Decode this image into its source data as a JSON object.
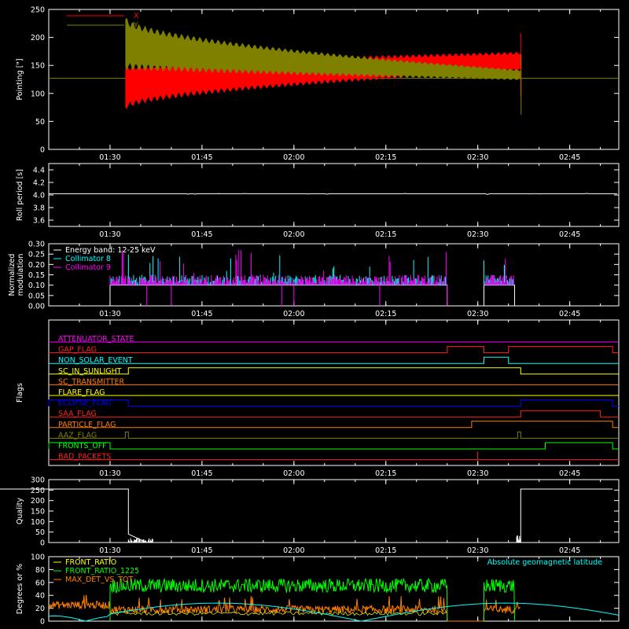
{
  "time_ticks": [
    "01:30",
    "01:45",
    "02:00",
    "02:15",
    "02:30",
    "02:45"
  ],
  "chart_data": [
    {
      "id": "pointing",
      "type": "line",
      "ylabel": "Pointing [\"]",
      "ylim": [
        0,
        250
      ],
      "yticks": [
        "0",
        "50",
        "100",
        "150",
        "200",
        "250"
      ],
      "legend": [
        {
          "name": "X",
          "color": "#ff0000"
        },
        {
          "name": "Y",
          "color": "#808000"
        }
      ],
      "reference_line": 127,
      "series": [
        {
          "name": "X",
          "color": "#ff0000",
          "envelope": {
            "start": "01:32:30",
            "end": "02:37:00",
            "center_start": 110,
            "center_end": 157,
            "amp_start": 35,
            "amp_end": 15
          }
        },
        {
          "name": "Y",
          "color": "#808000",
          "envelope": {
            "start": "01:32:30",
            "end": "02:37:00",
            "center_start": 190,
            "center_end": 133,
            "amp_start": 42,
            "amp_end": 8
          }
        }
      ]
    },
    {
      "id": "roll",
      "type": "line",
      "ylabel": "Roll period [s]",
      "ylim": [
        3.5,
        4.5
      ],
      "yticks": [
        "3.6",
        "3.8",
        "4.0",
        "4.2",
        "4.4"
      ],
      "series": [
        {
          "name": "",
          "color": "#ffffff",
          "value": 4.02
        }
      ]
    },
    {
      "id": "modulation",
      "type": "line",
      "ylabel": "Normalized modulation",
      "ylim": [
        0,
        0.3
      ],
      "yticks": [
        "0.00",
        "0.05",
        "0.10",
        "0.15",
        "0.20",
        "0.25",
        "0.30"
      ],
      "legend": [
        {
          "name": "Energy band: 12-25 keV",
          "color": "#ffffff"
        },
        {
          "name": "Collimator 8",
          "color": "#00ffff"
        },
        {
          "name": "Collimator 9",
          "color": "#ff00ff"
        }
      ],
      "intervals": [
        [
          "01:30",
          "02:25"
        ],
        [
          "02:31",
          "02:36"
        ]
      ],
      "baseline": 0.1
    },
    {
      "id": "flags",
      "type": "line",
      "ylabel": "Flags",
      "flags": [
        {
          "name": "ATTENUATOR_STATE",
          "color": "#ff00ff",
          "steps": []
        },
        {
          "name": "GAP_FLAG",
          "color": "#ff2020",
          "steps": [
            [
              "02:25",
              "02:31"
            ],
            [
              "02:35",
              "02:52"
            ]
          ]
        },
        {
          "name": "NON_SOLAR_EVENT",
          "color": "#00ffff",
          "steps": [
            [
              "02:31",
              "02:35"
            ]
          ]
        },
        {
          "name": "SC_IN_SUNLIGHT",
          "color": "#ffff00",
          "steps": [
            [
              "01:33",
              "02:37"
            ]
          ]
        },
        {
          "name": "SC_TRANSMITTER",
          "color": "#ff8000",
          "steps": []
        },
        {
          "name": "FLARE_FLAG",
          "color": "#ffff00",
          "steps": []
        },
        {
          "name": "ECLIPSE_FLAG",
          "color": "#0000ff",
          "steps": [
            [
              "00:50",
              "01:33"
            ],
            [
              "02:37",
              "02:52"
            ]
          ]
        },
        {
          "name": "SAA_FLAG",
          "color": "#ff2020",
          "steps": [
            [
              "02:37",
              "02:50"
            ]
          ]
        },
        {
          "name": "PARTICLE_FLAG",
          "color": "#ff8000",
          "steps": [
            [
              "02:29",
              "02:52"
            ]
          ]
        },
        {
          "name": "AAZ_FLAG",
          "color": "#808000",
          "steps": [
            [
              "01:32:30",
              "01:33"
            ],
            [
              "02:36:30",
              "02:37"
            ]
          ]
        },
        {
          "name": "FRONTS_OFF",
          "color": "#00ff00",
          "steps": [
            [
              "00:50",
              "01:30"
            ],
            [
              "02:41",
              "02:52"
            ]
          ]
        },
        {
          "name": "BAD_PACKETS",
          "color": "#ff2020",
          "steps": []
        }
      ]
    },
    {
      "id": "quality",
      "type": "line",
      "ylabel": "Quality",
      "ylim": [
        0,
        300
      ],
      "yticks": [
        "0",
        "50",
        "100",
        "150",
        "200",
        "250",
        "300"
      ],
      "segments": [
        [
          [
            "00:50",
            255
          ],
          [
            "01:33",
            255
          ],
          [
            "01:33",
            40
          ],
          [
            "01:36",
            0
          ],
          [
            "02:37",
            0
          ],
          [
            "02:37",
            255
          ],
          [
            "02:52",
            255
          ]
        ]
      ]
    },
    {
      "id": "ratios",
      "type": "line",
      "ylabel": "Degrees or %",
      "ylim": [
        0,
        100
      ],
      "yticks": [
        "0",
        "20",
        "40",
        "60",
        "80",
        "100"
      ],
      "legend": [
        {
          "name": "FRONT_RATIO",
          "color": "#ffff00"
        },
        {
          "name": "FRONT_RATIO_1225",
          "color": "#00ff00"
        },
        {
          "name": "MAX_DET_VS_TOT",
          "color": "#ff8000"
        }
      ],
      "annotation": {
        "text": "Absolute geomagnetic latitude",
        "color": "#00ffff"
      },
      "front_ratio_1225_level": 55,
      "max_det_level": 15
    }
  ]
}
